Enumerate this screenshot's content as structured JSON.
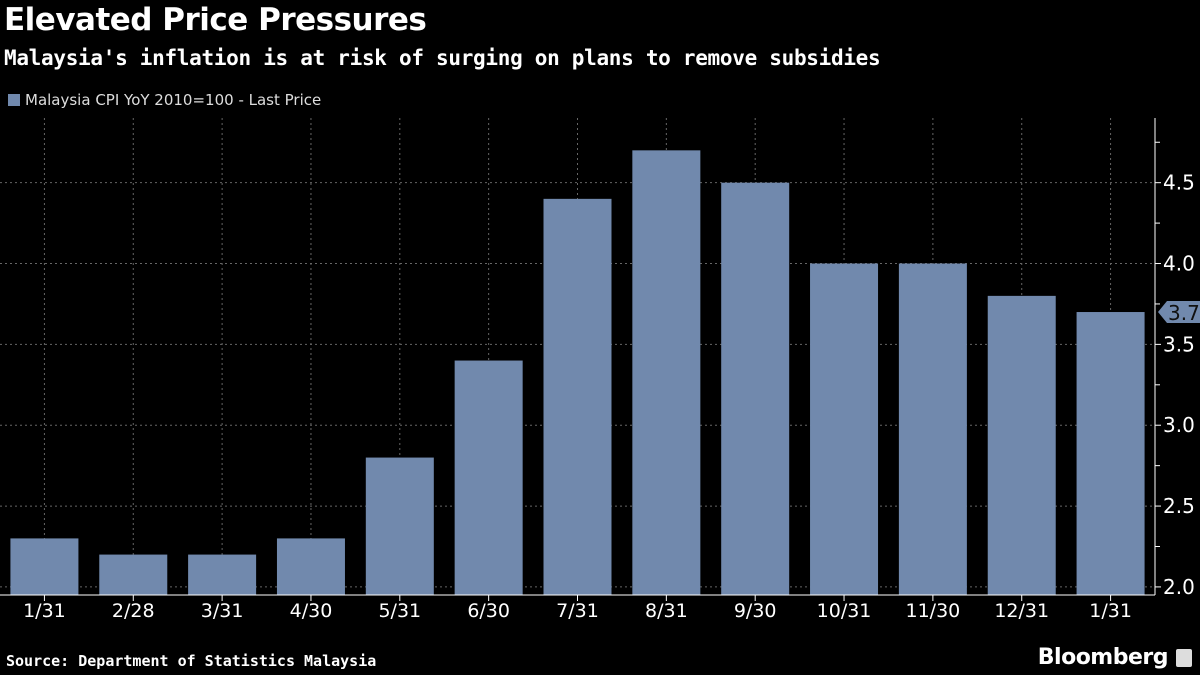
{
  "chart_data": {
    "type": "bar",
    "title": "Elevated Price Pressures",
    "subtitle": "Malaysia's inflation is at risk of surging on plans to remove subsidies",
    "legend": [
      "Malaysia CPI YoY 2010=100 - Last Price"
    ],
    "legend_placement": "top-left",
    "categories": [
      "1/31",
      "2/28",
      "3/31",
      "4/30",
      "5/31",
      "6/30",
      "7/31",
      "8/31",
      "9/30",
      "10/31",
      "11/30",
      "12/31",
      "1/31"
    ],
    "series": [
      {
        "name": "Malaysia CPI YoY 2010=100 - Last Price",
        "values": [
          2.3,
          2.2,
          2.2,
          2.3,
          2.8,
          3.4,
          4.4,
          4.7,
          4.5,
          4.0,
          4.0,
          3.8,
          3.7
        ]
      }
    ],
    "yticks": [
      "2.0",
      "2.5",
      "3.0",
      "3.5",
      "4.0",
      "4.5"
    ],
    "ylim": [
      1.95,
      4.9
    ],
    "y_axis_side": "right",
    "last_value_label": "3.7",
    "grid": true,
    "bar_color": "#7189ad",
    "background": "#000000"
  },
  "source": "Source: Department of Statistics Malaysia",
  "brand": "Bloomberg"
}
